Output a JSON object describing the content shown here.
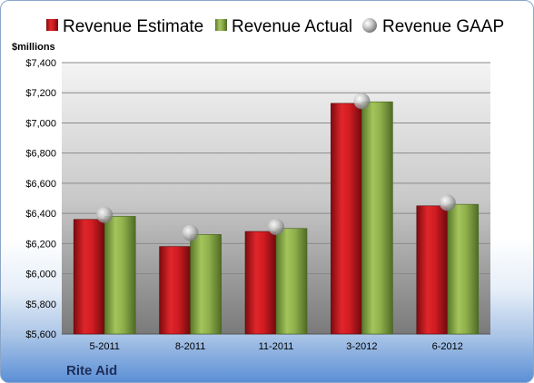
{
  "company_label": "Rite Aid",
  "chart_data": {
    "type": "bar",
    "ylabel": "$millions",
    "ylim": [
      5600,
      7400
    ],
    "ytick_step": 200,
    "ytick_labels": [
      "$5,600",
      "$5,800",
      "$6,000",
      "$6,200",
      "$6,400",
      "$6,600",
      "$6,800",
      "$7,000",
      "$7,200",
      "$7,400"
    ],
    "categories": [
      "5-2011",
      "8-2011",
      "11-2011",
      "3-2012",
      "6-2012"
    ],
    "grid": true,
    "legend_position": "top",
    "series": [
      {
        "name": "Revenue Estimate",
        "kind": "bar",
        "color": "#c8161d",
        "values": [
          6360,
          6180,
          6280,
          7130,
          6450
        ]
      },
      {
        "name": "Revenue Actual",
        "kind": "bar",
        "color": "#8aab4a",
        "values": [
          6380,
          6260,
          6300,
          7140,
          6460
        ]
      },
      {
        "name": "Revenue GAAP",
        "kind": "marker",
        "color": "#b8b8b8",
        "values": [
          6390,
          6270,
          6310,
          7145,
          6470
        ]
      }
    ]
  }
}
